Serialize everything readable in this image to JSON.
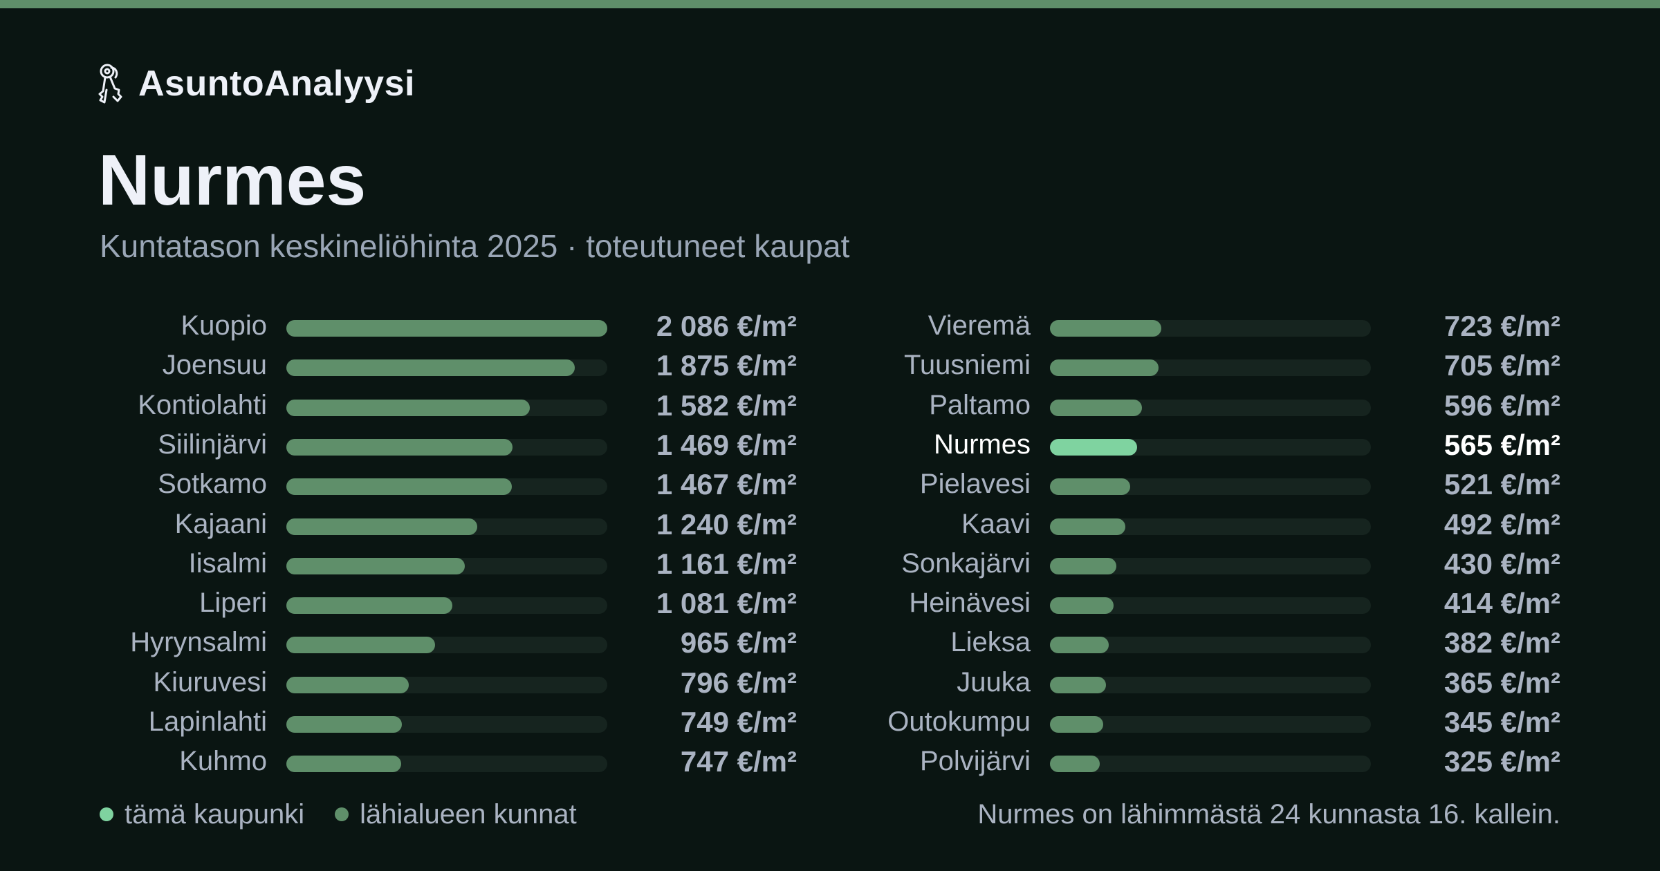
{
  "brand": {
    "name": "AsuntoAnalyysi",
    "icon": "keys-icon"
  },
  "header": {
    "title": "Nurmes",
    "subtitle": "Kuntatason keskineliöhinta 2025 · toteutuneet kaupat"
  },
  "colors": {
    "bar": "#5f8f6a",
    "highlight": "#7fd3a0",
    "track": "#16241f",
    "background": "#0a1512",
    "accent_bar": "#5f8f6a"
  },
  "chart_data": {
    "type": "bar",
    "orientation": "horizontal",
    "max": 2086,
    "unit": "€/m²",
    "highlight": "Nurmes",
    "bars": [
      {
        "name": "Kuopio",
        "value": 2086,
        "label": "2 086 €/m²"
      },
      {
        "name": "Joensuu",
        "value": 1875,
        "label": "1 875 €/m²"
      },
      {
        "name": "Kontiolahti",
        "value": 1582,
        "label": "1 582 €/m²"
      },
      {
        "name": "Siilinjärvi",
        "value": 1469,
        "label": "1 469 €/m²"
      },
      {
        "name": "Sotkamo",
        "value": 1467,
        "label": "1 467 €/m²"
      },
      {
        "name": "Kajaani",
        "value": 1240,
        "label": "1 240 €/m²"
      },
      {
        "name": "Iisalmi",
        "value": 1161,
        "label": "1 161 €/m²"
      },
      {
        "name": "Liperi",
        "value": 1081,
        "label": "1 081 €/m²"
      },
      {
        "name": "Hyrynsalmi",
        "value": 965,
        "label": "965 €/m²"
      },
      {
        "name": "Kiuruvesi",
        "value": 796,
        "label": "796 €/m²"
      },
      {
        "name": "Lapinlahti",
        "value": 749,
        "label": "749 €/m²"
      },
      {
        "name": "Kuhmo",
        "value": 747,
        "label": "747 €/m²"
      },
      {
        "name": "Vieremä",
        "value": 723,
        "label": "723 €/m²"
      },
      {
        "name": "Tuusniemi",
        "value": 705,
        "label": "705 €/m²"
      },
      {
        "name": "Paltamo",
        "value": 596,
        "label": "596 €/m²"
      },
      {
        "name": "Nurmes",
        "value": 565,
        "label": "565 €/m²"
      },
      {
        "name": "Pielavesi",
        "value": 521,
        "label": "521 €/m²"
      },
      {
        "name": "Kaavi",
        "value": 492,
        "label": "492 €/m²"
      },
      {
        "name": "Sonkajärvi",
        "value": 430,
        "label": "430 €/m²"
      },
      {
        "name": "Heinävesi",
        "value": 414,
        "label": "414 €/m²"
      },
      {
        "name": "Lieksa",
        "value": 382,
        "label": "382 €/m²"
      },
      {
        "name": "Juuka",
        "value": 365,
        "label": "365 €/m²"
      },
      {
        "name": "Outokumpu",
        "value": 345,
        "label": "345 €/m²"
      },
      {
        "name": "Polvijärvi",
        "value": 325,
        "label": "325 €/m²"
      }
    ]
  },
  "legend": {
    "items": [
      {
        "label": "tämä kaupunki",
        "color": "#7fd3a0"
      },
      {
        "label": "lähialueen kunnat",
        "color": "#5f8f6a"
      }
    ]
  },
  "footer": {
    "note": "Nurmes on lähimmästä 24 kunnasta 16. kallein."
  }
}
